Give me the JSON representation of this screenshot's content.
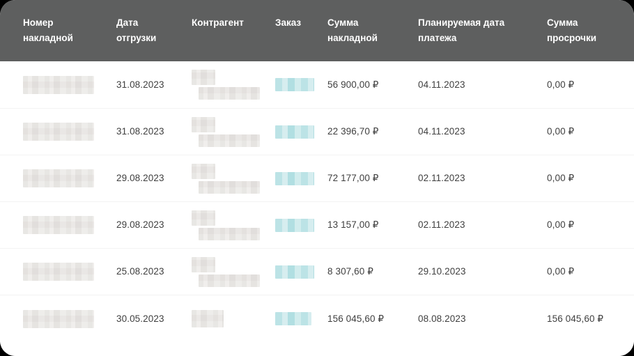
{
  "colors": {
    "page_bg": "#000000",
    "card_bg": "#ffffff",
    "header_bg": "#5e5f5f",
    "header_text": "#ffffff",
    "body_text": "#3f3f3f",
    "row_separator": "#f3f3f3",
    "order_link_blur": "#9ed8dc",
    "redacted_blur": "#efedeb"
  },
  "table": {
    "columns": [
      {
        "key": "invoice_number",
        "label": "Номер\nнакладной"
      },
      {
        "key": "shipment_date",
        "label": "Дата\nотгрузки"
      },
      {
        "key": "counterparty",
        "label": "Контрагент"
      },
      {
        "key": "order",
        "label": "Заказ"
      },
      {
        "key": "invoice_amount",
        "label": "Сумма\nнакладной"
      },
      {
        "key": "planned_payment_date",
        "label": "Планируемая дата\nплатежа"
      },
      {
        "key": "overdue_amount",
        "label": "Сумма\nпросрочки"
      }
    ],
    "rows": [
      {
        "invoice_number_redacted": true,
        "shipment_date": "31.08.2023",
        "counterparty_redacted": true,
        "order_redacted": true,
        "invoice_amount": "56 900,00 ₽",
        "planned_payment_date": "04.11.2023",
        "overdue_amount": "0,00 ₽"
      },
      {
        "invoice_number_redacted": true,
        "shipment_date": "31.08.2023",
        "counterparty_redacted": true,
        "order_redacted": true,
        "invoice_amount": "22 396,70 ₽",
        "planned_payment_date": "04.11.2023",
        "overdue_amount": "0,00 ₽"
      },
      {
        "invoice_number_redacted": true,
        "shipment_date": "29.08.2023",
        "counterparty_redacted": true,
        "order_redacted": true,
        "invoice_amount": "72 177,00 ₽",
        "planned_payment_date": "02.11.2023",
        "overdue_amount": "0,00 ₽"
      },
      {
        "invoice_number_redacted": true,
        "shipment_date": "29.08.2023",
        "counterparty_redacted": true,
        "order_redacted": true,
        "invoice_amount": "13 157,00 ₽",
        "planned_payment_date": "02.11.2023",
        "overdue_amount": "0,00 ₽"
      },
      {
        "invoice_number_redacted": true,
        "shipment_date": "25.08.2023",
        "counterparty_redacted": true,
        "order_redacted": true,
        "invoice_amount": "8 307,60 ₽",
        "planned_payment_date": "29.10.2023",
        "overdue_amount": "0,00 ₽"
      },
      {
        "invoice_number_redacted": true,
        "shipment_date": "30.05.2023",
        "counterparty_redacted": true,
        "order_redacted": true,
        "invoice_amount": "156 045,60 ₽",
        "planned_payment_date": "08.08.2023",
        "overdue_amount": "156 045,60 ₽"
      }
    ]
  }
}
